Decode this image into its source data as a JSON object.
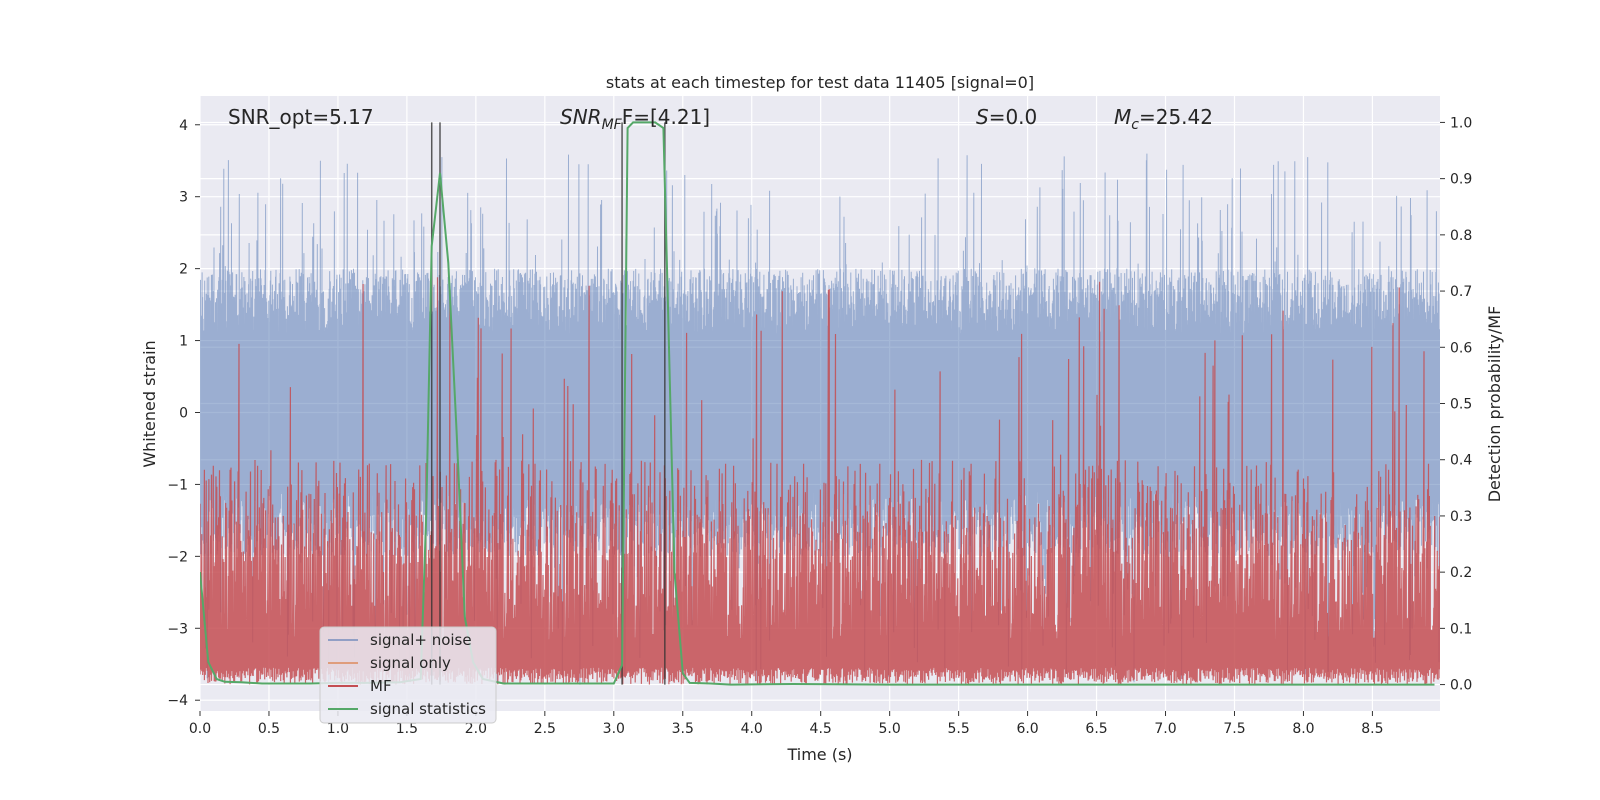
{
  "chart_data": {
    "type": "line",
    "title": "stats at each timestep for test data 11405 [signal=0]",
    "xlabel": "Time (s)",
    "ylabel_left": "Whitened strain",
    "ylabel_right": "Detection probability/MF",
    "xlim": [
      0.0,
      8.99
    ],
    "ylim_left": [
      -4.15,
      4.4
    ],
    "ylim_right": [
      -0.047,
      1.047
    ],
    "x_ticks": [
      "0.0",
      "0.5",
      "1.0",
      "1.5",
      "2.0",
      "2.5",
      "3.0",
      "3.5",
      "4.0",
      "4.5",
      "5.0",
      "5.5",
      "6.0",
      "6.5",
      "7.0",
      "7.5",
      "8.0",
      "8.5"
    ],
    "y_left_ticks": [
      "4",
      "3",
      "2",
      "1",
      "0",
      "−1",
      "−2",
      "−3",
      "−4"
    ],
    "y_right_ticks": [
      "1.0",
      "0.9",
      "0.8",
      "0.7",
      "0.6",
      "0.5",
      "0.4",
      "0.3",
      "0.2",
      "0.1",
      "0.0"
    ],
    "annotations": {
      "snr_opt": "SNR_opt=5.17",
      "snr_mf_main": "SNR",
      "snr_mf_sub": "MF",
      "snr_mf_rest": "F=[4.21]",
      "s_italic": "S",
      "s_rest": "=0.0",
      "mc_main": "M",
      "mc_sub": "c",
      "mc_rest": "=25.42"
    },
    "legend": {
      "placement": "lower-left",
      "entries": [
        "signal+ noise",
        "signal only",
        "MF",
        "signal statistics"
      ]
    },
    "vertical_markers_s": [
      1.68,
      1.74,
      3.06,
      3.37
    ],
    "noise_envelope": {
      "upper": 2.0,
      "lower": -2.0,
      "spike_max": 3.6,
      "spike_min": -3.8
    },
    "mf_band": {
      "base": 0.0,
      "top": 0.4,
      "spike_max": 0.95
    },
    "series": [
      {
        "name": "signal statistics",
        "axis": "right",
        "x": [
          0.0,
          0.06,
          0.12,
          0.18,
          0.3,
          0.45,
          0.6,
          0.8,
          1.0,
          1.2,
          1.45,
          1.6,
          1.64,
          1.68,
          1.74,
          1.8,
          1.86,
          1.92,
          1.98,
          2.05,
          2.2,
          2.5,
          2.8,
          3.0,
          3.06,
          3.1,
          3.14,
          3.2,
          3.3,
          3.36,
          3.39,
          3.44,
          3.5,
          3.55,
          3.7,
          3.85,
          4.3,
          5.0,
          6.0,
          7.0,
          8.0,
          8.95
        ],
        "y": [
          0.2,
          0.04,
          0.01,
          0.005,
          0.004,
          0.002,
          0.002,
          0.002,
          0.003,
          0.003,
          0.004,
          0.01,
          0.3,
          0.78,
          0.91,
          0.75,
          0.45,
          0.12,
          0.04,
          0.01,
          0.002,
          0.002,
          0.002,
          0.002,
          0.035,
          0.99,
          1.0,
          1.0,
          1.0,
          0.99,
          0.7,
          0.2,
          0.02,
          0.003,
          0.002,
          0.0,
          0.001,
          0.0,
          0.0,
          0.0,
          0.0,
          0.0
        ]
      }
    ]
  },
  "colors": {
    "plot_bg": "#eaeaf2",
    "grid": "#ffffff",
    "noise": "#4c72b0",
    "signal_only": "#dd8452",
    "mf": "#c44e52",
    "stats": "#55a868",
    "marker": "#333333"
  }
}
